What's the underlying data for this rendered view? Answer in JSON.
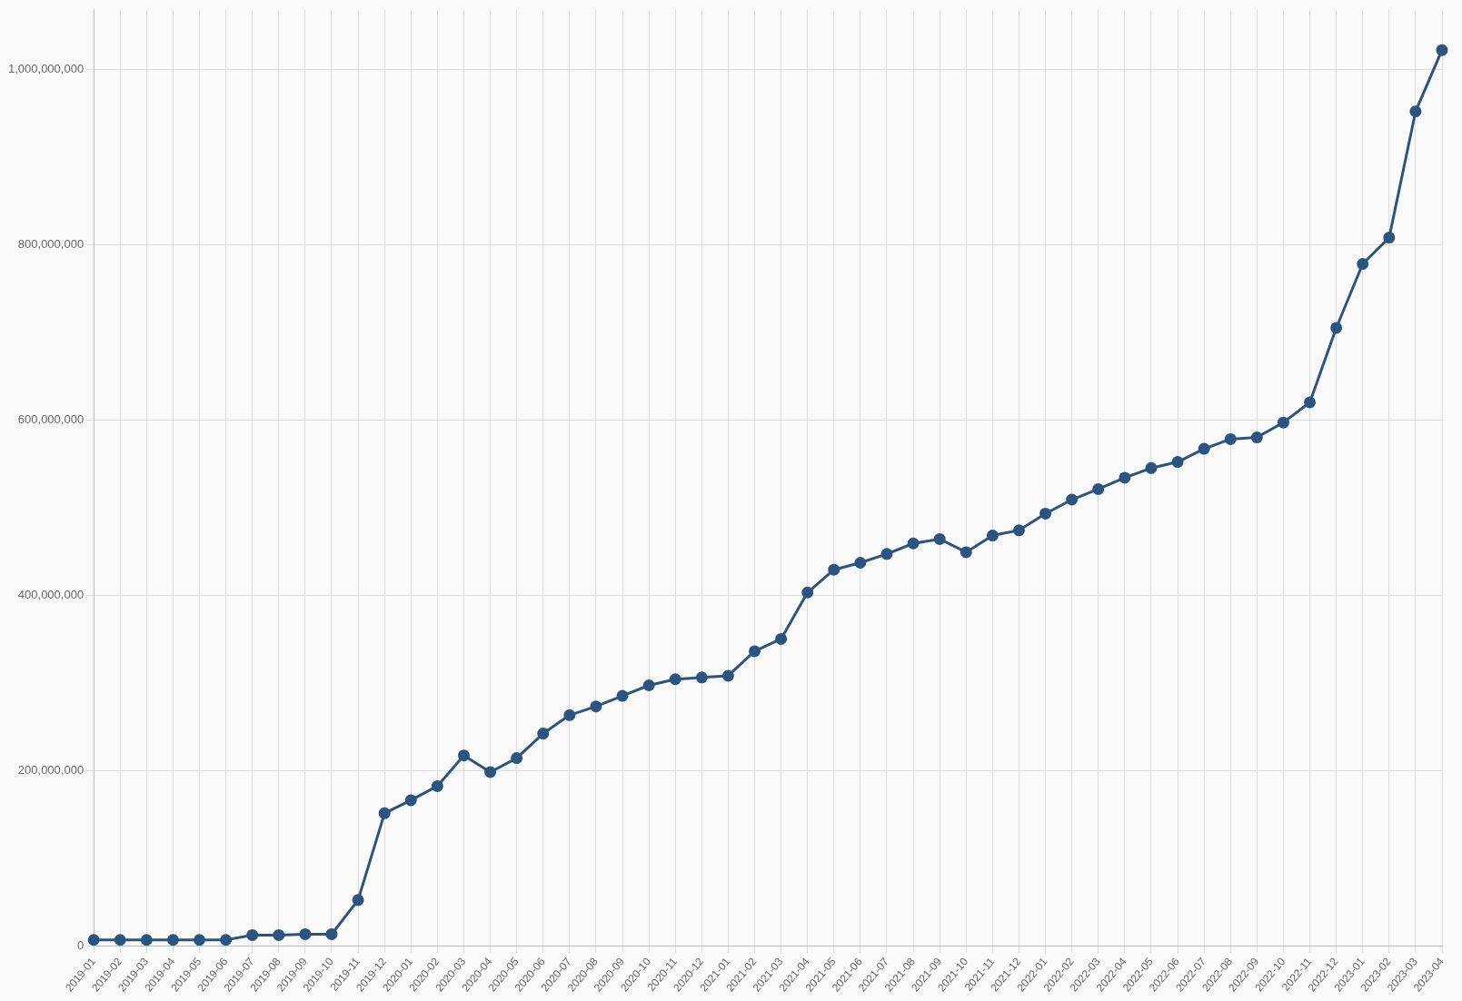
{
  "chart_data": {
    "type": "line",
    "categories": [
      "2019-01",
      "2019-02",
      "2019-03",
      "2019-04",
      "2019-05",
      "2019-06",
      "2019-07",
      "2019-08",
      "2019-09",
      "2019-10",
      "2019-11",
      "2019-12",
      "2020-01",
      "2020-02",
      "2020-03",
      "2020-04",
      "2020-05",
      "2020-06",
      "2020-07",
      "2020-08",
      "2020-09",
      "2020-10",
      "2020-11",
      "2020-12",
      "2021-01",
      "2021-02",
      "2021-03",
      "2021-04",
      "2021-05",
      "2021-06",
      "2021-07",
      "2021-08",
      "2021-09",
      "2021-10",
      "2021-11",
      "2021-12",
      "2022-01",
      "2022-02",
      "2022-03",
      "2022-04",
      "2022-05",
      "2022-06",
      "2022-07",
      "2022-08",
      "2022-09",
      "2022-10",
      "2022-11",
      "2022-12",
      "2023-01",
      "2023-02",
      "2023-03",
      "2023-04"
    ],
    "series": [
      {
        "color": "#2b5580",
        "values": [
          6500000,
          6500000,
          6500000,
          6500000,
          6500000,
          6500000,
          12000000,
          12000000,
          13000000,
          13000000,
          52000000,
          151000000,
          166000000,
          182000000,
          217000000,
          198000000,
          214000000,
          242000000,
          263000000,
          273000000,
          285000000,
          297000000,
          304000000,
          306000000,
          308000000,
          336000000,
          350000000,
          403000000,
          429000000,
          437000000,
          447000000,
          459000000,
          464000000,
          449000000,
          468000000,
          474000000,
          493000000,
          509000000,
          521000000,
          534000000,
          545000000,
          552000000,
          567000000,
          578000000,
          580000000,
          597000000,
          620000000,
          705000000,
          778000000,
          808000000,
          952000000,
          1022000000
        ]
      }
    ],
    "ylim": [
      0,
      1068000000
    ],
    "yticks": [
      {
        "value": 0,
        "label": "0"
      },
      {
        "value": 200000000,
        "label": "200,000,000"
      },
      {
        "value": 400000000,
        "label": "400,000,000"
      },
      {
        "value": 600000000,
        "label": "600,000,000"
      },
      {
        "value": 800000000,
        "label": "800,000,000"
      },
      {
        "value": 1000000000,
        "label": "1,000,000,000"
      }
    ],
    "grid": true,
    "legend": false,
    "marker": "circle",
    "line_style": "solid"
  }
}
